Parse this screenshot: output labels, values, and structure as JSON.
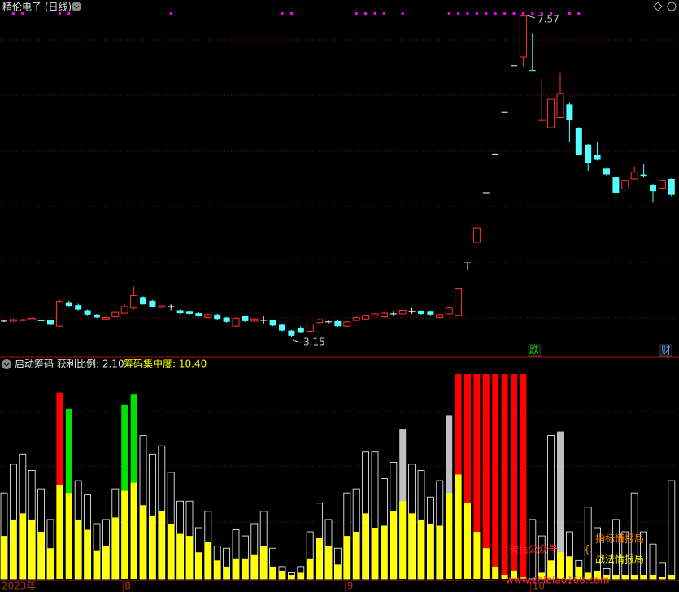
{
  "chart_data": [
    {
      "type": "candlestick",
      "title": "精伦电子 (日线)",
      "ylim": [
        2.89,
        7.77
      ],
      "up_color": "#ff3232",
      "down_color": "#54ffff",
      "flat_color": "#ffffff",
      "ohlc": [
        [
          3.37,
          3.38,
          3.36,
          3.37
        ],
        [
          3.37,
          3.4,
          3.36,
          3.39
        ],
        [
          3.38,
          3.4,
          3.37,
          3.39
        ],
        [
          3.39,
          3.42,
          3.38,
          3.41
        ],
        [
          3.39,
          3.4,
          3.36,
          3.37
        ],
        [
          3.38,
          3.39,
          3.31,
          3.32
        ],
        [
          3.3,
          3.66,
          3.29,
          3.64
        ],
        [
          3.63,
          3.65,
          3.57,
          3.58
        ],
        [
          3.59,
          3.61,
          3.52,
          3.53
        ],
        [
          3.52,
          3.53,
          3.45,
          3.46
        ],
        [
          3.46,
          3.47,
          3.41,
          3.42
        ],
        [
          3.4,
          3.43,
          3.39,
          3.42
        ],
        [
          3.43,
          3.5,
          3.42,
          3.49
        ],
        [
          3.48,
          3.6,
          3.47,
          3.57
        ],
        [
          3.55,
          3.84,
          3.53,
          3.72
        ],
        [
          3.7,
          3.71,
          3.6,
          3.6
        ],
        [
          3.65,
          3.66,
          3.57,
          3.57
        ],
        [
          3.56,
          3.59,
          3.55,
          3.58
        ],
        [
          3.57,
          3.6,
          3.52,
          3.57
        ],
        [
          3.52,
          3.53,
          3.47,
          3.48
        ],
        [
          3.5,
          3.51,
          3.46,
          3.47
        ],
        [
          3.48,
          3.49,
          3.43,
          3.44
        ],
        [
          3.42,
          3.47,
          3.41,
          3.46
        ],
        [
          3.46,
          3.47,
          3.39,
          3.4
        ],
        [
          3.42,
          3.43,
          3.35,
          3.36
        ],
        [
          3.3,
          3.42,
          3.29,
          3.41
        ],
        [
          3.44,
          3.45,
          3.36,
          3.37
        ],
        [
          3.37,
          3.41,
          3.36,
          3.4
        ],
        [
          3.38,
          3.44,
          3.33,
          3.38
        ],
        [
          3.38,
          3.39,
          3.3,
          3.31
        ],
        [
          3.32,
          3.33,
          3.23,
          3.24
        ],
        [
          3.24,
          3.25,
          3.15,
          3.17
        ],
        [
          3.28,
          3.3,
          3.21,
          3.22
        ],
        [
          3.23,
          3.34,
          3.22,
          3.33
        ],
        [
          3.35,
          3.4,
          3.34,
          3.39
        ],
        [
          3.36,
          3.39,
          3.33,
          3.36
        ],
        [
          3.37,
          3.38,
          3.29,
          3.3
        ],
        [
          3.3,
          3.37,
          3.29,
          3.36
        ],
        [
          3.38,
          3.43,
          3.37,
          3.42
        ],
        [
          3.4,
          3.46,
          3.39,
          3.45
        ],
        [
          3.44,
          3.48,
          3.43,
          3.47
        ],
        [
          3.43,
          3.49,
          3.42,
          3.48
        ],
        [
          3.47,
          3.5,
          3.45,
          3.47
        ],
        [
          3.47,
          3.53,
          3.46,
          3.52
        ],
        [
          3.5,
          3.55,
          3.47,
          3.5
        ],
        [
          3.51,
          3.52,
          3.46,
          3.47
        ],
        [
          3.5,
          3.51,
          3.45,
          3.46
        ],
        [
          3.42,
          3.47,
          3.41,
          3.46
        ],
        [
          3.47,
          3.56,
          3.46,
          3.55
        ],
        [
          3.45,
          3.82,
          3.44,
          3.82
        ],
        [
          4.17,
          4.17,
          4.07,
          4.17
        ],
        [
          4.45,
          4.65,
          4.37,
          4.65
        ],
        [
          5.13,
          5.13,
          5.13,
          5.13
        ],
        [
          5.66,
          5.66,
          5.66,
          5.66
        ],
        [
          6.23,
          6.23,
          6.23,
          6.23
        ],
        [
          6.87,
          6.87,
          6.87,
          6.87
        ],
        [
          6.99,
          7.57,
          6.86,
          7.55
        ],
        [
          6.81,
          7.32,
          6.8,
          6.8
        ],
        [
          6.12,
          6.69,
          6.12,
          6.13
        ],
        [
          6.02,
          6.41,
          6.01,
          6.41
        ],
        [
          6.16,
          6.77,
          6.15,
          6.49
        ],
        [
          6.34,
          6.36,
          5.82,
          6.12
        ],
        [
          6.02,
          6.03,
          5.65,
          5.65
        ],
        [
          5.79,
          5.8,
          5.43,
          5.54
        ],
        [
          5.65,
          5.82,
          5.57,
          5.58
        ],
        [
          5.46,
          5.48,
          5.36,
          5.38
        ],
        [
          5.34,
          5.35,
          5.07,
          5.13
        ],
        [
          5.18,
          5.3,
          5.15,
          5.3
        ],
        [
          5.32,
          5.49,
          5.31,
          5.41
        ],
        [
          5.38,
          5.52,
          5.34,
          5.35
        ],
        [
          5.23,
          5.25,
          4.99,
          5.15
        ],
        [
          5.19,
          5.3,
          5.18,
          5.3
        ],
        [
          5.32,
          5.33,
          5.08,
          5.1
        ]
      ],
      "annotations": [
        "7.57",
        "3.15"
      ],
      "signal_color": "#ff00ff",
      "signals": [
        1,
        2,
        6,
        7,
        18,
        30,
        31,
        38,
        39,
        40,
        41,
        43,
        48,
        49,
        50,
        51,
        52,
        53,
        54,
        55,
        56,
        57,
        58,
        59,
        61,
        62
      ],
      "events": [
        "跌",
        "财"
      ]
    },
    {
      "type": "bar",
      "title": "启动筹码",
      "legend": [
        "获利比例: 2.10",
        "筹码集中度: 10.40"
      ],
      "ylim": [
        0,
        100
      ],
      "inner_color": "#ffff00",
      "categories": [
        "2023年",
        null,
        null,
        null,
        null,
        null,
        null,
        null,
        null,
        null,
        null,
        null,
        null,
        "8",
        null,
        null,
        null,
        null,
        null,
        null,
        null,
        null,
        null,
        null,
        null,
        null,
        null,
        null,
        null,
        null,
        null,
        null,
        null,
        null,
        null,
        null,
        null,
        "9",
        null,
        null,
        null,
        null,
        null,
        null,
        null,
        null,
        null,
        null,
        null,
        null,
        null,
        null,
        null,
        null,
        null,
        null,
        null,
        "10",
        null,
        null,
        null,
        null,
        null,
        null,
        null,
        null,
        null,
        null,
        null,
        null,
        null,
        null,
        null
      ],
      "outer": [
        42,
        56,
        61,
        53,
        44,
        29,
        91,
        83,
        48,
        41,
        27,
        29,
        44,
        85,
        90,
        70,
        61,
        65,
        52,
        38,
        38,
        25,
        33,
        16,
        15,
        24,
        21,
        27,
        33,
        15,
        6,
        3,
        6,
        23,
        37,
        29,
        15,
        42,
        44,
        62,
        62,
        49,
        57,
        73,
        56,
        53,
        40,
        48,
        80,
        100,
        100,
        100,
        100,
        100,
        100,
        100,
        100,
        29,
        21,
        70,
        72,
        23,
        9,
        35,
        25,
        5,
        29,
        23,
        42,
        23,
        17,
        8,
        48
      ],
      "outer_colors": [
        "#ffffff",
        "#ffffff",
        "#ffffff",
        "#ffffff",
        "#ffffff",
        "#ffffff",
        "#ff0000",
        "#00e000",
        "#ffffff",
        "#ffffff",
        "#ffffff",
        "#ffffff",
        "#ffffff",
        "#00e000",
        "#00e000",
        "#ffffff",
        "#ffffff",
        "#ffffff",
        "#ffffff",
        "#ffffff",
        "#ffffff",
        "#ffffff",
        "#ffffff",
        "#ffffff",
        "#ffffff",
        "#ffffff",
        "#ffffff",
        "#ffffff",
        "#ffffff",
        "#ffffff",
        "#ffffff",
        "#ffffff",
        "#ffffff",
        "#ffffff",
        "#ffffff",
        "#ffffff",
        "#ffffff",
        "#ffffff",
        "#ffffff",
        "#ffffff",
        "#ffffff",
        "#ffffff",
        "#ffffff",
        "#c0c0c0",
        "#ffffff",
        "#ffffff",
        "#ffffff",
        "#ffffff",
        "#c0c0c0",
        "#ff0000",
        "#ff0000",
        "#ff0000",
        "#ff0000",
        "#ff0000",
        "#ff0000",
        "#ff0000",
        "#ff0000",
        "#ffffff",
        "#ffffff",
        "#ffffff",
        "#c0c0c0",
        "#ffffff",
        "#ffffff",
        "#ffffff",
        "#ffffff",
        "#ffffff",
        "#ffffff",
        "#ffffff",
        "#ffffff",
        "#ffffff",
        "#ffffff",
        "#ffffff",
        "#ffffff"
      ],
      "inner": [
        21,
        29,
        32,
        29,
        23,
        15,
        46,
        42,
        29,
        24,
        14,
        16,
        30,
        43,
        47,
        36,
        31,
        33,
        27,
        22,
        21,
        13,
        18,
        9,
        6,
        10,
        10,
        12,
        16,
        6,
        4,
        2,
        3,
        10,
        20,
        16,
        7,
        21,
        23,
        32,
        25,
        26,
        33,
        38,
        32,
        29,
        27,
        26,
        42,
        51,
        37,
        23,
        15,
        6,
        2,
        4,
        1,
        0,
        3,
        9,
        13,
        11,
        6,
        3,
        4,
        2,
        2,
        2,
        2,
        2,
        2,
        1,
        2
      ]
    }
  ],
  "brand": [
    "微信公众号",
    "指标情报局",
    "战法情报局"
  ],
  "watermark": "www.zhibiao168.com"
}
